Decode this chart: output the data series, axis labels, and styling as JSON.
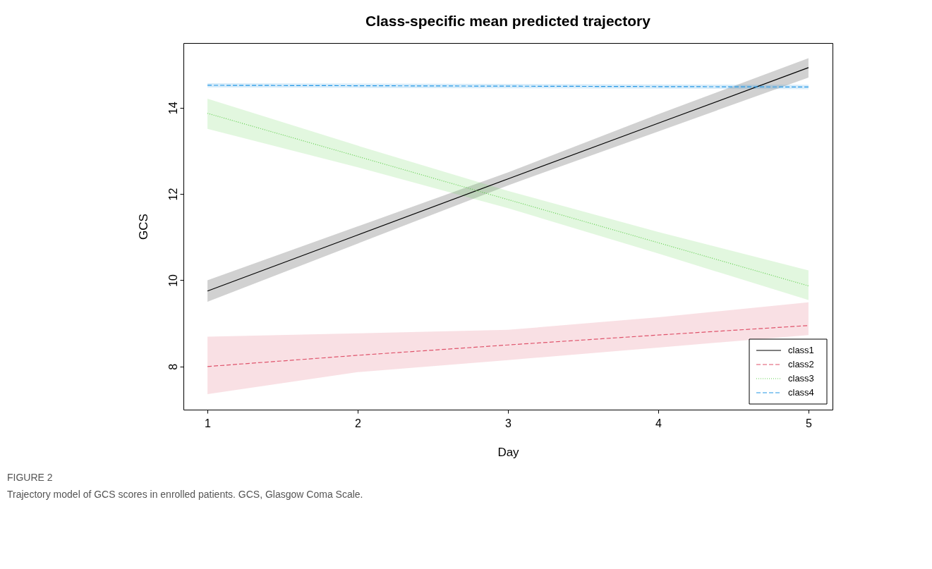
{
  "chart_data": {
    "type": "line",
    "title": "Class-specific mean predicted trajectory",
    "xlabel": "Day",
    "ylabel": "GCS",
    "x": [
      1,
      2,
      3,
      4,
      5
    ],
    "series": [
      {
        "name": "class1",
        "color": "#000000",
        "line_style": "solid",
        "values": [
          9.75,
          11.05,
          12.35,
          13.64,
          14.93
        ],
        "lower": [
          9.5,
          10.85,
          12.2,
          13.45,
          14.7
        ],
        "upper": [
          10.0,
          11.25,
          12.5,
          13.85,
          15.15
        ]
      },
      {
        "name": "class2",
        "color": "#df536b",
        "line_style": "dashed",
        "values": [
          8.0,
          8.26,
          8.5,
          8.73,
          8.95
        ],
        "lower": [
          7.36,
          7.87,
          8.15,
          8.44,
          8.73
        ],
        "upper": [
          8.69,
          8.77,
          8.85,
          9.14,
          9.49
        ]
      },
      {
        "name": "class3",
        "color": "#61d04f",
        "line_style": "dotted",
        "values": [
          13.87,
          12.87,
          11.87,
          10.87,
          9.87
        ],
        "lower": [
          13.51,
          12.62,
          11.67,
          10.62,
          9.54
        ],
        "upper": [
          14.21,
          13.12,
          12.07,
          11.12,
          10.23
        ]
      },
      {
        "name": "class4",
        "color": "#2297e6",
        "line_style": "dashed",
        "values": [
          14.52,
          14.51,
          14.5,
          14.49,
          14.48
        ],
        "lower": [
          14.47,
          14.46,
          14.45,
          14.44,
          14.43
        ],
        "upper": [
          14.57,
          14.56,
          14.55,
          14.54,
          14.53
        ]
      }
    ],
    "xlim": [
      0.84,
      5.16
    ],
    "ylim": [
      7.0,
      15.5
    ],
    "xticks": [
      1,
      2,
      3,
      4,
      5
    ],
    "yticks": [
      8,
      10,
      12,
      14
    ],
    "grid": false,
    "legend": "bottom right",
    "marker": "none",
    "annotations": [
      "FIGURE 2",
      "Trajectory model of GCS scores in enrolled patients. GCS, Glasgow Coma Scale."
    ]
  }
}
